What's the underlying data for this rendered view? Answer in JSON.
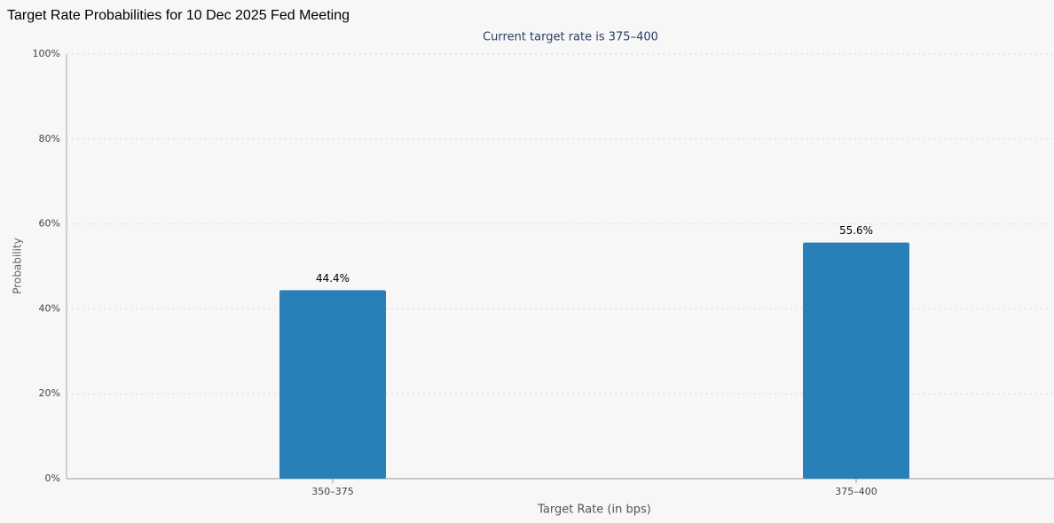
{
  "chart_data": {
    "type": "bar",
    "title": "Target Rate Probabilities for 10 Dec 2025 Fed Meeting",
    "subtitle": "Current target rate is 375–400",
    "x_label": "Target Rate (in bps)",
    "y_label": "Probability",
    "categories": [
      "350–375",
      "375–400"
    ],
    "values": [
      44.4,
      55.6
    ],
    "value_labels": [
      "44.4%",
      "55.6%"
    ],
    "color": "#2980b9",
    "ylim": [
      0,
      100
    ],
    "yticks": [
      {
        "value": 0,
        "label": "0%"
      },
      {
        "value": 20,
        "label": "20%"
      },
      {
        "value": 40,
        "label": "40%"
      },
      {
        "value": 60,
        "label": "60%"
      },
      {
        "value": 80,
        "label": "80%"
      },
      {
        "value": 100,
        "label": "100%"
      }
    ],
    "grid": true
  }
}
